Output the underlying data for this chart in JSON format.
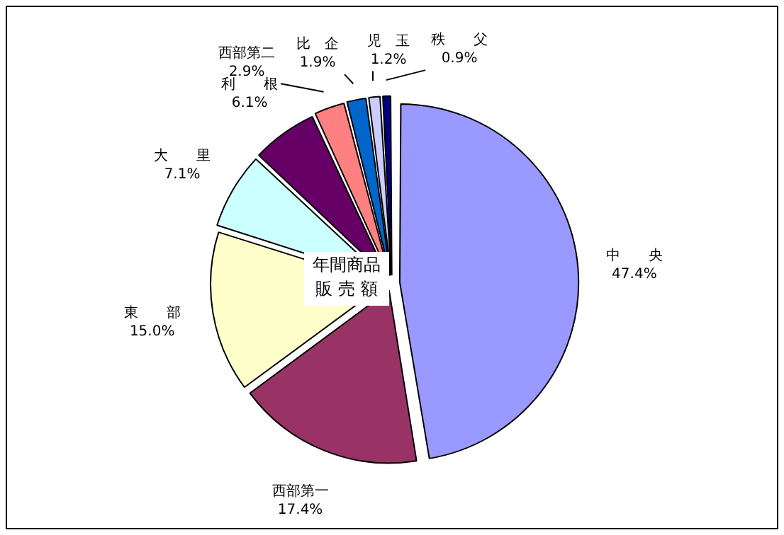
{
  "chart_data": {
    "type": "pie",
    "title": "年間商品販 売 額",
    "categories": [
      "中　　央",
      "西部第一",
      "東　　部",
      "大　　里",
      "利　　根",
      "西部第二",
      "比　企",
      "児　玉",
      "秩　　父"
    ],
    "values": [
      47.4,
      17.4,
      15.0,
      7.1,
      6.1,
      2.9,
      1.9,
      1.2,
      0.9
    ],
    "value_labels": [
      "47.4%",
      "17.4%",
      "15.0%",
      "7.1%",
      "6.1%",
      "2.9%",
      "1.9%",
      "1.2%",
      "0.9%"
    ],
    "colors": [
      "#9999ff",
      "#993366",
      "#ffffcc",
      "#ccffff",
      "#660066",
      "#ff8080",
      "#0066cc",
      "#ccccff",
      "#000080"
    ],
    "legend": false
  }
}
